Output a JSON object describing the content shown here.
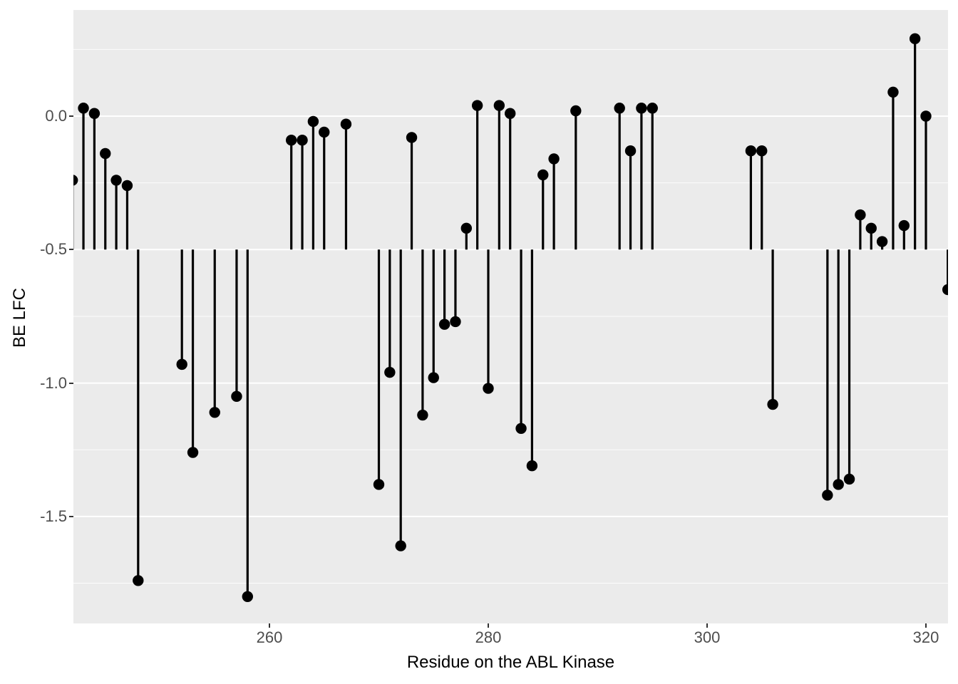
{
  "chart_data": {
    "type": "lollipop",
    "title": "",
    "xlabel": "Residue on the ABL Kinase",
    "ylabel": "BE LFC",
    "legend": "none",
    "grid": "horizontal-major-and-minor-only",
    "baseline": -0.5,
    "x_domain": [
      241.9,
      322.1
    ],
    "y_domain": [
      -1.9,
      0.4
    ],
    "x_ticks": [
      260,
      280,
      300,
      320
    ],
    "x_tick_labels": [
      "260",
      "280",
      "300",
      "320"
    ],
    "y_ticks": [
      0.0,
      -0.5,
      -1.0,
      -1.5
    ],
    "y_tick_labels": [
      "0.0",
      "-0.5",
      "-1.0",
      "-1.5"
    ],
    "y_minor_gridlines": [
      0.25,
      -0.25,
      -0.75,
      -1.25,
      -1.75
    ],
    "panel_background": "#EBEBEB",
    "gridline_color": "#FFFFFF",
    "point_color": "#000000",
    "stem_color": "#000000",
    "axis_text_color": "#4D4D4D",
    "axis_title_color": "#000000",
    "points": [
      {
        "residue": 242,
        "lfc": -0.24
      },
      {
        "residue": 243,
        "lfc": 0.03
      },
      {
        "residue": 244,
        "lfc": 0.01
      },
      {
        "residue": 245,
        "lfc": -0.14
      },
      {
        "residue": 246,
        "lfc": -0.24
      },
      {
        "residue": 247,
        "lfc": -0.26
      },
      {
        "residue": 248,
        "lfc": -1.74
      },
      {
        "residue": 252,
        "lfc": -0.93
      },
      {
        "residue": 253,
        "lfc": -1.26
      },
      {
        "residue": 255,
        "lfc": -1.11
      },
      {
        "residue": 257,
        "lfc": -1.05
      },
      {
        "residue": 258,
        "lfc": -1.8
      },
      {
        "residue": 262,
        "lfc": -0.09
      },
      {
        "residue": 263,
        "lfc": -0.09
      },
      {
        "residue": 264,
        "lfc": -0.02
      },
      {
        "residue": 265,
        "lfc": -0.06
      },
      {
        "residue": 267,
        "lfc": -0.03
      },
      {
        "residue": 270,
        "lfc": -1.38
      },
      {
        "residue": 271,
        "lfc": -0.96
      },
      {
        "residue": 272,
        "lfc": -1.61
      },
      {
        "residue": 273,
        "lfc": -0.08
      },
      {
        "residue": 274,
        "lfc": -1.12
      },
      {
        "residue": 275,
        "lfc": -0.98
      },
      {
        "residue": 276,
        "lfc": -0.78
      },
      {
        "residue": 277,
        "lfc": -0.77
      },
      {
        "residue": 278,
        "lfc": -0.42
      },
      {
        "residue": 279,
        "lfc": 0.04
      },
      {
        "residue": 280,
        "lfc": -1.02
      },
      {
        "residue": 281,
        "lfc": 0.04
      },
      {
        "residue": 282,
        "lfc": 0.01
      },
      {
        "residue": 283,
        "lfc": -1.17
      },
      {
        "residue": 284,
        "lfc": -1.31
      },
      {
        "residue": 285,
        "lfc": -0.22
      },
      {
        "residue": 286,
        "lfc": -0.16
      },
      {
        "residue": 288,
        "lfc": 0.02
      },
      {
        "residue": 292,
        "lfc": 0.03
      },
      {
        "residue": 293,
        "lfc": -0.13
      },
      {
        "residue": 294,
        "lfc": 0.03
      },
      {
        "residue": 295,
        "lfc": 0.03
      },
      {
        "residue": 304,
        "lfc": -0.13
      },
      {
        "residue": 305,
        "lfc": -0.13
      },
      {
        "residue": 306,
        "lfc": -1.08
      },
      {
        "residue": 311,
        "lfc": -1.42
      },
      {
        "residue": 312,
        "lfc": -1.38
      },
      {
        "residue": 313,
        "lfc": -1.36
      },
      {
        "residue": 314,
        "lfc": -0.37
      },
      {
        "residue": 315,
        "lfc": -0.42
      },
      {
        "residue": 316,
        "lfc": -0.47
      },
      {
        "residue": 317,
        "lfc": 0.09
      },
      {
        "residue": 318,
        "lfc": -0.41
      },
      {
        "residue": 319,
        "lfc": 0.29
      },
      {
        "residue": 320,
        "lfc": 0.0
      },
      {
        "residue": 322,
        "lfc": -0.65
      }
    ]
  }
}
